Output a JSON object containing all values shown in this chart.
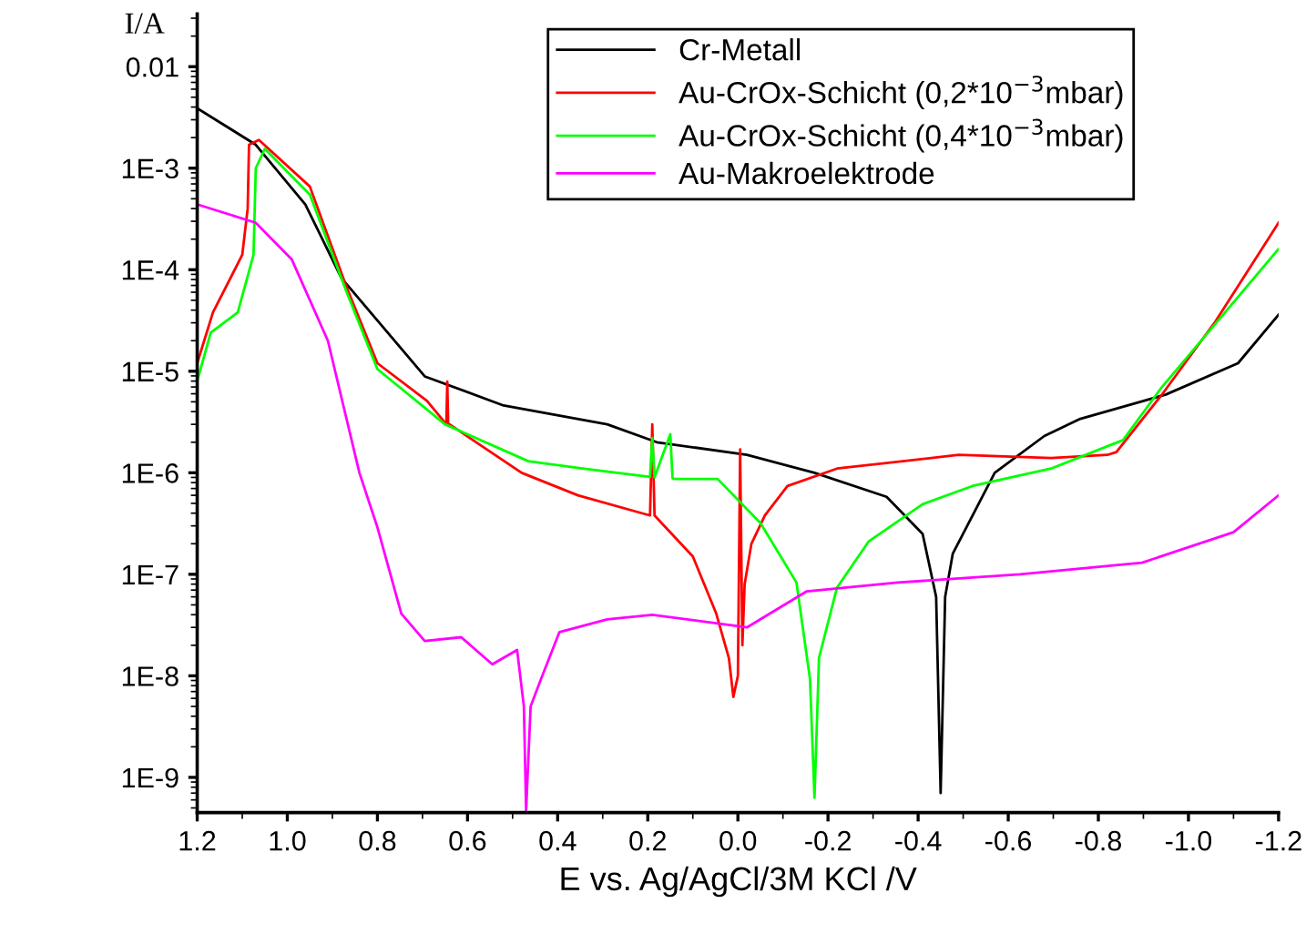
{
  "chart_data": {
    "type": "line",
    "xlabel": "E vs. Ag/AgCl/3M KCl /V",
    "ylabel": "I/A",
    "log": "y",
    "xlim": [
      1.2,
      -1.2
    ],
    "ylim": [
      4.5e-10,
      0.033
    ],
    "xticks": [
      1.2,
      {
        "value": 1.0,
        "label": "1.0"
      },
      0.8,
      0.6,
      0.4,
      0.2,
      {
        "value": 0.0,
        "label": "0.0"
      },
      -0.2,
      -0.4,
      -0.6,
      -0.8,
      {
        "value": -1.0,
        "label": "-1.0"
      },
      -1.2
    ],
    "yticks": [
      {
        "value": 1e-09,
        "label": "1E-9"
      },
      {
        "value": 1e-08,
        "label": "1E-8"
      },
      {
        "value": 1e-07,
        "label": "1E-7"
      },
      {
        "value": 1e-06,
        "label": "1E-6"
      },
      {
        "value": 1e-05,
        "label": "1E-5"
      },
      {
        "value": 0.0001,
        "label": "1E-4"
      },
      {
        "value": 0.001,
        "label": "1E-3"
      },
      {
        "value": 0.01,
        "label": "0.01"
      }
    ],
    "legend": "top right",
    "grid": false,
    "marker": "none",
    "line_style": "solid",
    "series": [
      {
        "name": "Cr-Metall",
        "color": "#000000",
        "x": [
          1.2,
          1.07,
          0.96,
          0.88,
          0.695,
          0.52,
          0.29,
          0.18,
          -0.02,
          -0.17,
          -0.33,
          -0.41,
          -0.44,
          -0.45,
          -0.46,
          -0.477,
          -0.57,
          -0.68,
          -0.76,
          -0.95,
          -1.11,
          -1.2
        ],
        "values": [
          0.0039,
          0.0017,
          0.00044,
          8.3e-05,
          8.9e-06,
          4.6e-06,
          3e-06,
          2e-06,
          1.5e-06,
          1e-06,
          5.8e-07,
          2.5e-07,
          6e-08,
          7e-10,
          6e-08,
          1.6e-07,
          1e-06,
          2.3e-06,
          3.4e-06,
          5.9e-06,
          1.2e-05,
          3.6e-05
        ]
      },
      {
        "name": "Au-CrOx-Schicht (0,2*10$^{−3}$mbar)",
        "color": "#ff0000",
        "x": [
          1.2,
          1.165,
          1.1,
          1.088,
          1.085,
          1.063,
          0.95,
          0.87,
          0.8,
          0.69,
          0.647,
          0.645,
          0.643,
          0.64,
          0.48,
          0.355,
          0.195,
          0.19,
          0.185,
          0.1,
          0.048,
          0.02,
          0.01,
          0.0,
          -0.005,
          -0.01,
          -0.015,
          -0.03,
          -0.06,
          -0.11,
          -0.22,
          -0.49,
          -0.695,
          -0.82,
          -0.84,
          -0.94,
          -1.06,
          -1.2
        ],
        "values": [
          1.2e-05,
          3.8e-05,
          0.00014,
          0.0004,
          0.0017,
          0.0019,
          0.00066,
          7e-05,
          1.2e-05,
          5.1e-06,
          3e-06,
          7.9e-06,
          3e-06,
          3e-06,
          1e-06,
          6e-07,
          3.8e-07,
          3e-06,
          3.8e-07,
          1.5e-07,
          4.1e-08,
          1.5e-08,
          6.2e-09,
          1e-08,
          1.7e-06,
          2e-08,
          8e-08,
          2e-07,
          3.8e-07,
          7.4e-07,
          1.1e-06,
          1.5e-06,
          1.4e-06,
          1.5e-06,
          1.6e-06,
          5.8e-06,
          3.1e-05,
          0.00029
        ]
      },
      {
        "name": "Au-CrOx-Schicht (0,4*10$^{−3}$mbar)",
        "color": "#00ff00",
        "x": [
          1.2,
          1.17,
          1.11,
          1.075,
          1.07,
          1.05,
          0.95,
          0.87,
          0.8,
          0.65,
          0.465,
          0.345,
          0.195,
          0.19,
          0.185,
          0.15,
          0.145,
          0.14,
          0.045,
          -0.05,
          -0.13,
          -0.16,
          -0.17,
          -0.18,
          -0.22,
          -0.29,
          -0.41,
          -0.52,
          -0.695,
          -0.855,
          -0.94,
          -1.2
        ],
        "values": [
          8e-06,
          2.4e-05,
          3.8e-05,
          0.00014,
          0.001,
          0.00155,
          0.00055,
          6.3e-05,
          1.05e-05,
          3e-06,
          1.3e-06,
          1.1e-06,
          9.1e-07,
          2.2e-06,
          9e-07,
          2.4e-06,
          8.8e-07,
          8.7e-07,
          8.7e-07,
          3.2e-07,
          8.3e-08,
          9.3e-09,
          6.3e-10,
          1.5e-08,
          7.4e-08,
          2.1e-07,
          4.9e-07,
          7.4e-07,
          1.1e-06,
          2.1e-06,
          6.9e-06,
          0.00016
        ]
      },
      {
        "name": "Au-Makroelektrode",
        "color": "#ff00ff",
        "x": [
          1.2,
          1.07,
          0.99,
          0.91,
          0.84,
          0.8,
          0.747,
          0.695,
          0.614,
          0.545,
          0.49,
          0.475,
          0.47,
          0.46,
          0.437,
          0.396,
          0.29,
          0.19,
          0.048,
          -0.02,
          -0.153,
          -0.355,
          -0.626,
          -0.897,
          -1.1,
          -1.2
        ],
        "values": [
          0.00044,
          0.00029,
          0.000126,
          2e-05,
          1e-06,
          2.9e-07,
          4.1e-08,
          2.2e-08,
          2.4e-08,
          1.3e-08,
          1.8e-08,
          5e-09,
          4.7e-10,
          5e-09,
          9.3e-09,
          2.7e-08,
          3.6e-08,
          4e-08,
          3.3e-08,
          3e-08,
          6.8e-08,
          8.3e-08,
          1e-07,
          1.3e-07,
          2.6e-07,
          6e-07
        ]
      }
    ]
  }
}
